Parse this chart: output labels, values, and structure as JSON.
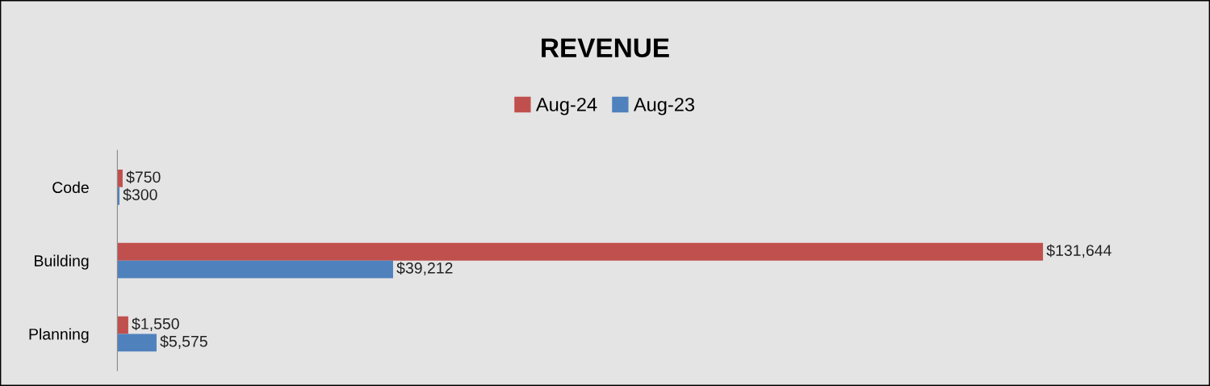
{
  "chart_data": {
    "type": "bar",
    "orientation": "horizontal",
    "title": "REVENUE",
    "categories": [
      "Code",
      "Building",
      "Planning"
    ],
    "series": [
      {
        "name": "Aug-24",
        "color": "#c0504d",
        "values": [
          750,
          131644,
          1550
        ],
        "value_labels": [
          "$750",
          "$131,644",
          "$1,550"
        ]
      },
      {
        "name": "Aug-23",
        "color": "#4f81bd",
        "values": [
          300,
          39212,
          5575
        ],
        "value_labels": [
          "$300",
          "$39,212",
          "$5,575"
        ]
      }
    ],
    "legend": "top",
    "tick_labels": "y"
  }
}
